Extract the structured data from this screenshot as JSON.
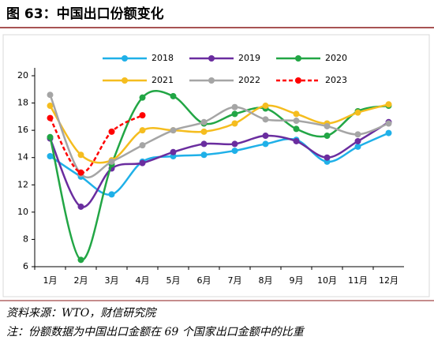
{
  "title": "图 63：中国出口份额变化",
  "chart_data": {
    "type": "line",
    "smooth": true,
    "categories": [
      "1月",
      "2月",
      "3月",
      "4月",
      "5月",
      "6月",
      "7月",
      "8月",
      "9月",
      "10月",
      "11月",
      "12月"
    ],
    "ylim": [
      6,
      20
    ],
    "yticks": [
      6,
      8,
      10,
      12,
      14,
      16,
      18,
      20
    ],
    "legend": "top",
    "series": [
      {
        "name": "2018",
        "color": "#1fb0e8",
        "line_style": "solid",
        "values": [
          14.1,
          12.6,
          11.3,
          13.7,
          14.1,
          14.2,
          14.5,
          15.0,
          15.3,
          13.7,
          14.8,
          15.8
        ]
      },
      {
        "name": "2019",
        "color": "#6a2d9f",
        "line_style": "solid",
        "values": [
          15.4,
          10.4,
          13.2,
          13.6,
          14.4,
          15.0,
          15.0,
          15.6,
          15.2,
          14.0,
          15.2,
          16.6
        ]
      },
      {
        "name": "2020",
        "color": "#22a645",
        "line_style": "solid",
        "values": [
          15.5,
          6.5,
          13.5,
          18.4,
          18.5,
          16.5,
          17.2,
          17.6,
          16.1,
          15.6,
          17.4,
          17.8
        ]
      },
      {
        "name": "2021",
        "color": "#f5bd1f",
        "line_style": "solid",
        "values": [
          17.8,
          14.2,
          13.8,
          16.0,
          16.0,
          15.9,
          16.5,
          17.8,
          17.2,
          16.5,
          17.3,
          17.9
        ]
      },
      {
        "name": "2022",
        "color": "#a5a5a5",
        "line_style": "solid",
        "values": [
          18.6,
          12.8,
          13.7,
          14.9,
          16.0,
          16.6,
          17.7,
          16.8,
          16.7,
          16.3,
          15.7,
          16.5
        ]
      },
      {
        "name": "2023",
        "color": "#ff0000",
        "line_style": "dashed",
        "values": [
          16.9,
          12.9,
          15.9,
          17.1,
          null,
          null,
          null,
          null,
          null,
          null,
          null,
          null
        ]
      }
    ]
  },
  "source": "资料来源：WTO，财信研究院",
  "note": "注：份额数据为中国出口金额在 69 个国家出口金额中的比重"
}
